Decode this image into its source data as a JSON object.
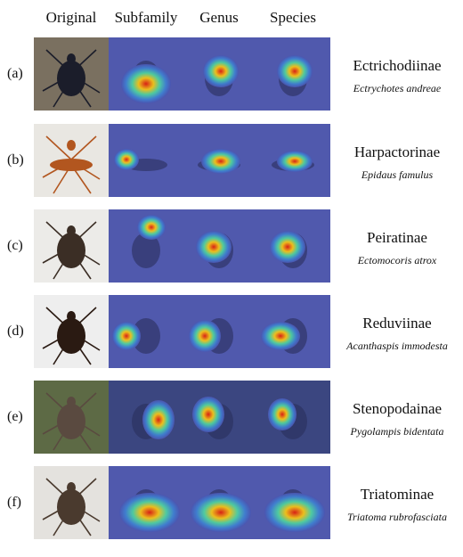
{
  "headers": [
    "Original",
    "Subfamily",
    "Genus",
    "Species"
  ],
  "rows": [
    {
      "label": "(a)",
      "subfamily": "Ectrichodiinae",
      "species": "Ectrychotes andreae"
    },
    {
      "label": "(b)",
      "subfamily": "Harpactorinae",
      "species": "Epidaus famulus"
    },
    {
      "label": "(c)",
      "subfamily": "Peiratinae",
      "species": "Ectomocoris atrox"
    },
    {
      "label": "(d)",
      "subfamily": "Reduviinae",
      "species": "Acanthaspis immodesta"
    },
    {
      "label": "(e)",
      "subfamily": "Stenopodainae",
      "species": "Pygolampis bidentata"
    },
    {
      "label": "(f)",
      "subfamily": "Triatominae",
      "species": "Triatoma rubrofasciata"
    }
  ]
}
